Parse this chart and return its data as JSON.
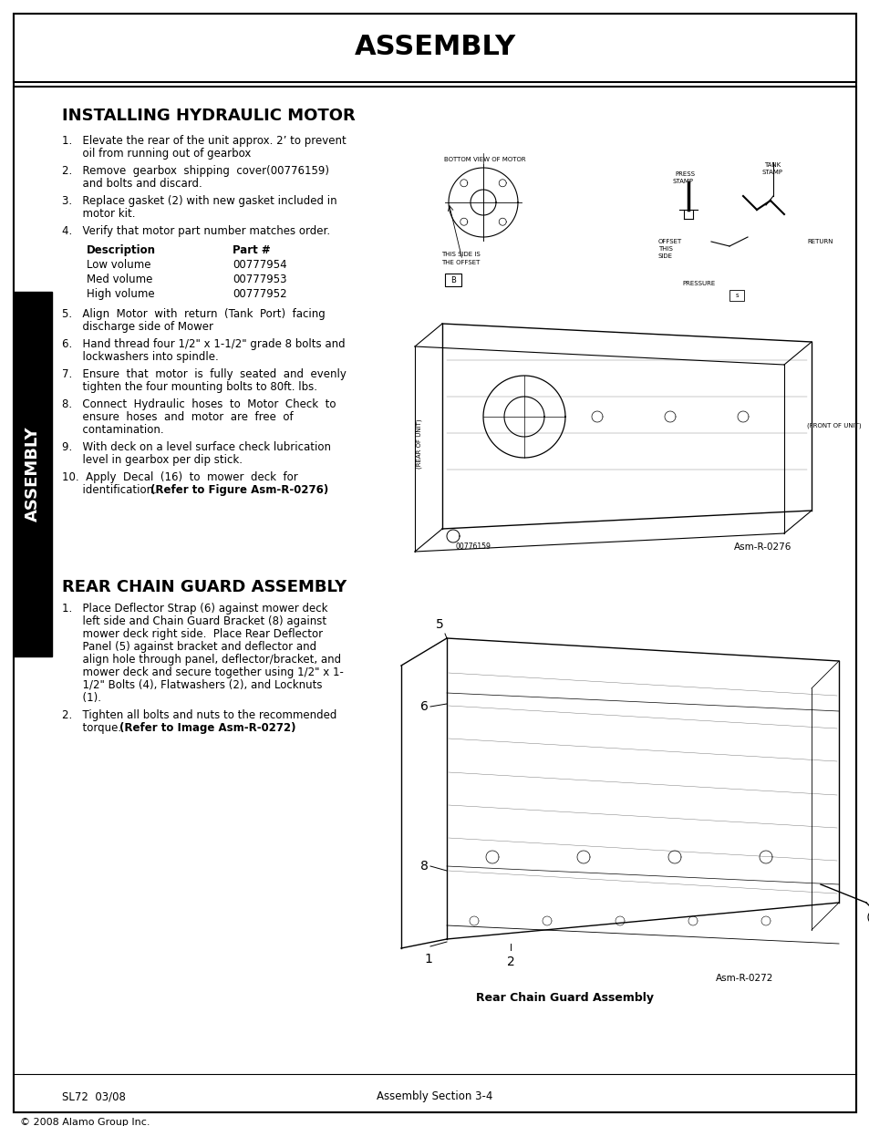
{
  "page_title": "ASSEMBLY",
  "section1_title": "INSTALLING HYDRAULIC MOTOR",
  "section1_items": [
    "1.   Elevate the rear of the unit approx. 2’ to prevent\n      oil from running out of gearbox",
    "2.   Remove  gearbox  shipping  cover(00776159)\n      and bolts and discard.",
    "3.   Replace gasket (2) with new gasket included in\n      motor kit.",
    "4.   Verify that motor part number matches order."
  ],
  "table_header": [
    "Description",
    "Part #"
  ],
  "table_rows": [
    [
      "Low volume",
      "00777954"
    ],
    [
      "Med volume",
      "00777953"
    ],
    [
      "High volume",
      "00777952"
    ]
  ],
  "section1_items2": [
    "5.   Align  Motor  with  return  (Tank  Port)  facing\n      discharge side of Mower",
    "6.   Hand thread four 1/2\" x 1-1/2\" grade 8 bolts and\n      lockwashers into spindle.",
    "7.   Ensure  that  motor  is  fully  seated  and  evenly\n      tighten the four mounting bolts to 80ft. lbs.",
    "8.   Connect  Hydraulic  hoses  to  Motor  Check  to\n      ensure  hoses  and  motor  are  free  of\n      contamination.",
    "9.   With deck on a level surface check lubrication\n      level in gearbox per dip stick.",
    "10.  Apply  Decal  (16)  to  mower  deck  for\n      identification.  [BOLD](Refer to Figure Asm-R-0276)"
  ],
  "asm_label1": "Asm-R-0276",
  "section2_title": "REAR CHAIN GUARD ASSEMBLY",
  "section2_items": [
    "1.   Place Deflector Strap (6) against mower deck\n      left side and Chain Guard Bracket (8) against\n      mower deck right side.  Place Rear Deflector\n      Panel (5) against bracket and deflector and\n      align hole through panel, deflector/bracket, and\n      mower deck and secure together using 1/2\" x 1-\n      1/2\" Bolts (4), Flatwashers (2), and Locknuts\n      (1).",
    "2.   Tighten all bolts and nuts to the recommended\n      torque.  [BOLD](Refer to Image Asm-R-0272)"
  ],
  "asm_label2": "Asm-R-0272",
  "asm_caption2": "Rear Chain Guard Assembly",
  "footer_left": "SL72  03/08",
  "footer_center": "Assembly Section 3-4",
  "copyright": "© 2008 Alamo Group Inc.",
  "sidebar_text": "ASSEMBLY",
  "bg_color": "#ffffff",
  "border_color": "#000000",
  "text_color": "#000000",
  "sidebar_bg": "#000000",
  "sidebar_text_color": "#ffffff"
}
